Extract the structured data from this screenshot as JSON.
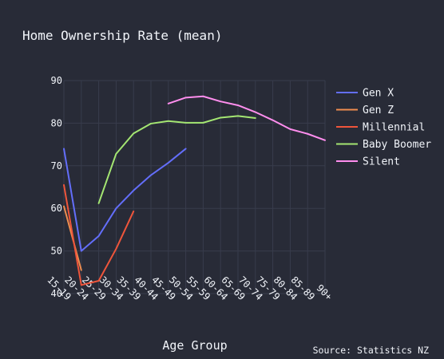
{
  "chart_data": {
    "type": "line",
    "title": "Home Ownership Rate (mean)",
    "xlabel": "Age Group",
    "ylabel": "",
    "source": "Source: Statistics NZ",
    "categories": [
      "15-19",
      "20-24",
      "25-29",
      "30-34",
      "35-39",
      "40-44",
      "45-49",
      "50-54",
      "55-59",
      "60-64",
      "65-69",
      "70-74",
      "75-79",
      "80-84",
      "85-89",
      "90+"
    ],
    "ylim": [
      40,
      90
    ],
    "yticks": [
      40,
      50,
      60,
      70,
      80,
      90
    ],
    "grid": true,
    "legend_position": "top-right",
    "series": [
      {
        "name": "Gen X",
        "color": "#636efa",
        "values": [
          74,
          50,
          53.5,
          60,
          64.2,
          67.8,
          70.7,
          74,
          null,
          null,
          null,
          null,
          null,
          null,
          null,
          null
        ]
      },
      {
        "name": "Gen Z",
        "color": "#ef8d4f",
        "values": [
          60.5,
          45.5,
          null,
          null,
          null,
          null,
          null,
          null,
          null,
          null,
          null,
          null,
          null,
          null,
          null,
          null
        ]
      },
      {
        "name": "Millennial",
        "color": "#ef553b",
        "values": [
          65.5,
          42,
          43,
          50.5,
          59.3,
          null,
          null,
          null,
          null,
          null,
          null,
          null,
          null,
          null,
          null,
          null
        ]
      },
      {
        "name": "Baby Boomer",
        "color": "#a4e672",
        "values": [
          null,
          null,
          61.2,
          72.8,
          77.6,
          79.9,
          80.5,
          80.1,
          80.1,
          81.3,
          81.7,
          81.2,
          null,
          null,
          null,
          null
        ]
      },
      {
        "name": "Silent",
        "color": "#ff8eee",
        "values": [
          null,
          null,
          null,
          null,
          null,
          null,
          84.6,
          86,
          86.3,
          85.1,
          84.2,
          82.6,
          80.7,
          78.6,
          77.5,
          76
        ]
      }
    ]
  }
}
